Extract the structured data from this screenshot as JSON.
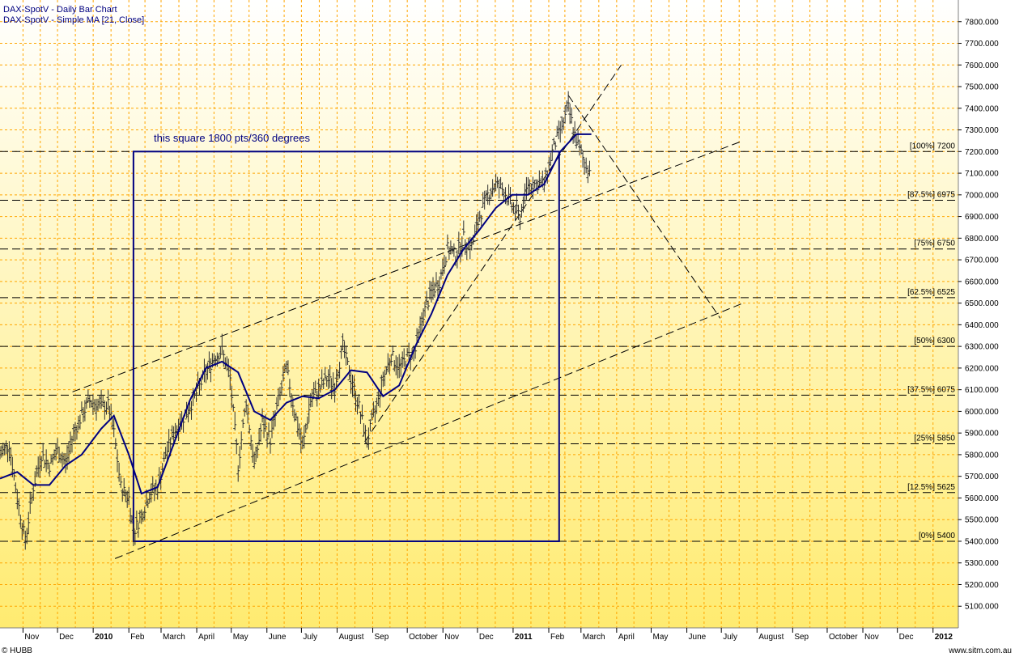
{
  "chart_data": {
    "type": "bar",
    "title": "DAX-SpotV - Daily Bar Chart",
    "subtitle": "DAX-SpotV - Simple MA [21, Close]",
    "annotation": "this square 1800 pts/360 degrees",
    "footer_left": "© HUBB",
    "footer_right": "www.sitm.com.au",
    "colors": {
      "bars": "#303030",
      "ma": "#000080",
      "square": "#000080",
      "grid": "#ffa500",
      "bg_top": "#ffffff",
      "bg_bottom": "#ffeb70"
    },
    "ylim": [
      5000,
      7900
    ],
    "y_ticks": [
      {
        "v": 5100,
        "label": "5100.000"
      },
      {
        "v": 5200,
        "label": "5200.000"
      },
      {
        "v": 5300,
        "label": "5300.000"
      },
      {
        "v": 5400,
        "label": "5400.000"
      },
      {
        "v": 5500,
        "label": "5500.000"
      },
      {
        "v": 5600,
        "label": "5600.000"
      },
      {
        "v": 5700,
        "label": "5700.000"
      },
      {
        "v": 5800,
        "label": "5800.000"
      },
      {
        "v": 5900,
        "label": "5900.000"
      },
      {
        "v": 6000,
        "label": "6000.000"
      },
      {
        "v": 6100,
        "label": "6100.000"
      },
      {
        "v": 6200,
        "label": "6200.000"
      },
      {
        "v": 6300,
        "label": "6300.000"
      },
      {
        "v": 6400,
        "label": "6400.000"
      },
      {
        "v": 6500,
        "label": "6500.000"
      },
      {
        "v": 6600,
        "label": "6600.000"
      },
      {
        "v": 6700,
        "label": "6700.000"
      },
      {
        "v": 6800,
        "label": "6800.000"
      },
      {
        "v": 6900,
        "label": "6900.000"
      },
      {
        "v": 7000,
        "label": "7000.000"
      },
      {
        "v": 7100,
        "label": "7100.000"
      },
      {
        "v": 7200,
        "label": "7200.000"
      },
      {
        "v": 7300,
        "label": "7300.000"
      },
      {
        "v": 7400,
        "label": "7400.000"
      },
      {
        "v": 7500,
        "label": "7500.000"
      },
      {
        "v": 7600,
        "label": "7600.000"
      },
      {
        "v": 7700,
        "label": "7700.000"
      },
      {
        "v": 7800,
        "label": "7800.000"
      }
    ],
    "x_range": [
      "2009-10-12",
      "2012-01-23"
    ],
    "x_labels": [
      {
        "date": "2009-11-01",
        "label": "Nov",
        "bold": false
      },
      {
        "date": "2009-12-01",
        "label": "Dec",
        "bold": false
      },
      {
        "date": "2010-01-01",
        "label": "2010",
        "bold": true
      },
      {
        "date": "2010-02-01",
        "label": "Feb",
        "bold": false
      },
      {
        "date": "2010-03-01",
        "label": "March",
        "bold": false
      },
      {
        "date": "2010-04-01",
        "label": "April",
        "bold": false
      },
      {
        "date": "2010-05-01",
        "label": "May",
        "bold": false
      },
      {
        "date": "2010-06-01",
        "label": "June",
        "bold": false
      },
      {
        "date": "2010-07-01",
        "label": "July",
        "bold": false
      },
      {
        "date": "2010-08-01",
        "label": "August",
        "bold": false
      },
      {
        "date": "2010-09-01",
        "label": "Sep",
        "bold": false
      },
      {
        "date": "2010-10-01",
        "label": "October",
        "bold": false
      },
      {
        "date": "2010-11-01",
        "label": "Nov",
        "bold": false
      },
      {
        "date": "2010-12-01",
        "label": "Dec",
        "bold": false
      },
      {
        "date": "2011-01-01",
        "label": "2011",
        "bold": true
      },
      {
        "date": "2011-02-01",
        "label": "Feb",
        "bold": false
      },
      {
        "date": "2011-03-01",
        "label": "March",
        "bold": false
      },
      {
        "date": "2011-04-01",
        "label": "April",
        "bold": false
      },
      {
        "date": "2011-05-01",
        "label": "May",
        "bold": false
      },
      {
        "date": "2011-06-01",
        "label": "June",
        "bold": false
      },
      {
        "date": "2011-07-01",
        "label": "July",
        "bold": false
      },
      {
        "date": "2011-08-01",
        "label": "August",
        "bold": false
      },
      {
        "date": "2011-09-01",
        "label": "Sep",
        "bold": false
      },
      {
        "date": "2011-10-01",
        "label": "October",
        "bold": false
      },
      {
        "date": "2011-11-01",
        "label": "Nov",
        "bold": false
      },
      {
        "date": "2011-12-01",
        "label": "Dec",
        "bold": false
      },
      {
        "date": "2012-01-01",
        "label": "2012",
        "bold": true
      }
    ],
    "series": [
      {
        "name": "DAX-SpotV",
        "type": "bar",
        "points": [
          [
            "2009-10-12",
            5800
          ],
          [
            "2009-10-20",
            5850
          ],
          [
            "2009-10-27",
            5600
          ],
          [
            "2009-11-03",
            5400
          ],
          [
            "2009-11-10",
            5650
          ],
          [
            "2009-11-17",
            5800
          ],
          [
            "2009-11-24",
            5750
          ],
          [
            "2009-12-01",
            5820
          ],
          [
            "2009-12-08",
            5760
          ],
          [
            "2009-12-15",
            5900
          ],
          [
            "2009-12-22",
            5980
          ],
          [
            "2009-12-29",
            6050
          ],
          [
            "2010-01-08",
            6020
          ],
          [
            "2010-01-14",
            6030
          ],
          [
            "2010-01-19",
            5900
          ],
          [
            "2010-01-25",
            5650
          ],
          [
            "2010-02-01",
            5600
          ],
          [
            "2010-02-05",
            5440
          ],
          [
            "2010-02-12",
            5520
          ],
          [
            "2010-02-19",
            5620
          ],
          [
            "2010-02-26",
            5650
          ],
          [
            "2010-03-05",
            5800
          ],
          [
            "2010-03-12",
            5900
          ],
          [
            "2010-03-19",
            5960
          ],
          [
            "2010-03-26",
            6020
          ],
          [
            "2010-04-02",
            6100
          ],
          [
            "2010-04-09",
            6180
          ],
          [
            "2010-04-16",
            6250
          ],
          [
            "2010-04-23",
            6280
          ],
          [
            "2010-04-30",
            6150
          ],
          [
            "2010-05-07",
            5750
          ],
          [
            "2010-05-14",
            6050
          ],
          [
            "2010-05-21",
            5750
          ],
          [
            "2010-05-28",
            5950
          ],
          [
            "2010-06-04",
            5870
          ],
          [
            "2010-06-11",
            6050
          ],
          [
            "2010-06-18",
            6200
          ],
          [
            "2010-06-25",
            6000
          ],
          [
            "2010-07-02",
            5830
          ],
          [
            "2010-07-09",
            6050
          ],
          [
            "2010-07-16",
            6100
          ],
          [
            "2010-07-23",
            6150
          ],
          [
            "2010-07-30",
            6120
          ],
          [
            "2010-08-06",
            6300
          ],
          [
            "2010-08-13",
            6150
          ],
          [
            "2010-08-20",
            6020
          ],
          [
            "2010-08-27",
            5860
          ],
          [
            "2010-09-03",
            6000
          ],
          [
            "2010-09-10",
            6150
          ],
          [
            "2010-09-17",
            6260
          ],
          [
            "2010-09-24",
            6200
          ],
          [
            "2010-10-01",
            6250
          ],
          [
            "2010-10-08",
            6280
          ],
          [
            "2010-10-15",
            6450
          ],
          [
            "2010-10-22",
            6550
          ],
          [
            "2010-10-29",
            6600
          ],
          [
            "2010-11-05",
            6750
          ],
          [
            "2010-11-12",
            6720
          ],
          [
            "2010-11-19",
            6800
          ],
          [
            "2010-11-26",
            6760
          ],
          [
            "2010-12-03",
            6900
          ],
          [
            "2010-12-10",
            7000
          ],
          [
            "2010-12-17",
            7050
          ],
          [
            "2010-12-24",
            7020
          ],
          [
            "2010-12-31",
            6950
          ],
          [
            "2011-01-07",
            6900
          ],
          [
            "2011-01-14",
            7050
          ],
          [
            "2011-01-21",
            7050
          ],
          [
            "2011-01-28",
            7050
          ],
          [
            "2011-02-04",
            7200
          ],
          [
            "2011-02-11",
            7300
          ],
          [
            "2011-02-18",
            7400
          ],
          [
            "2011-02-25",
            7250
          ],
          [
            "2011-03-04",
            7150
          ],
          [
            "2011-03-10",
            7100
          ]
        ]
      },
      {
        "name": "Simple MA [21, Close]",
        "type": "line",
        "points": [
          [
            "2009-10-12",
            5690
          ],
          [
            "2009-10-27",
            5720
          ],
          [
            "2009-11-10",
            5660
          ],
          [
            "2009-11-24",
            5660
          ],
          [
            "2009-12-08",
            5750
          ],
          [
            "2009-12-22",
            5800
          ],
          [
            "2010-01-08",
            5920
          ],
          [
            "2010-01-19",
            5980
          ],
          [
            "2010-02-01",
            5800
          ],
          [
            "2010-02-12",
            5620
          ],
          [
            "2010-02-26",
            5650
          ],
          [
            "2010-03-12",
            5850
          ],
          [
            "2010-03-26",
            6050
          ],
          [
            "2010-04-09",
            6200
          ],
          [
            "2010-04-23",
            6230
          ],
          [
            "2010-05-07",
            6180
          ],
          [
            "2010-05-21",
            6000
          ],
          [
            "2010-06-04",
            5960
          ],
          [
            "2010-06-18",
            6040
          ],
          [
            "2010-07-02",
            6070
          ],
          [
            "2010-07-16",
            6060
          ],
          [
            "2010-07-30",
            6100
          ],
          [
            "2010-08-13",
            6190
          ],
          [
            "2010-08-27",
            6180
          ],
          [
            "2010-09-10",
            6070
          ],
          [
            "2010-09-24",
            6120
          ],
          [
            "2010-10-08",
            6300
          ],
          [
            "2010-10-22",
            6450
          ],
          [
            "2010-11-05",
            6630
          ],
          [
            "2010-11-19",
            6750
          ],
          [
            "2010-12-03",
            6840
          ],
          [
            "2010-12-17",
            6940
          ],
          [
            "2010-12-31",
            7000
          ],
          [
            "2011-01-14",
            7000
          ],
          [
            "2011-01-28",
            7050
          ],
          [
            "2011-02-11",
            7200
          ],
          [
            "2011-02-25",
            7280
          ],
          [
            "2011-03-10",
            7280
          ]
        ]
      }
    ],
    "square": {
      "x0": "2010-02-05",
      "x1": "2011-02-10",
      "y0": 5400,
      "y1": 7200
    },
    "levels": [
      {
        "y": 7200,
        "label": "[100%] 7200"
      },
      {
        "y": 6975,
        "label": "[87.5%] 6975"
      },
      {
        "y": 6750,
        "label": "[75%] 6750"
      },
      {
        "y": 6525,
        "label": "[62.5%] 6525"
      },
      {
        "y": 6300,
        "label": "[50%] 6300"
      },
      {
        "y": 6075,
        "label": "[37.5%] 6075"
      },
      {
        "y": 5850,
        "label": "[25%] 5850"
      },
      {
        "y": 5625,
        "label": "[12.5%] 5625"
      },
      {
        "y": 5400,
        "label": "[0%] 5400"
      }
    ],
    "trendlines": [
      {
        "x1": "2010-01-20",
        "y1": 5320,
        "x2": "2011-07-20",
        "y2": 6500
      },
      {
        "x1": "2009-12-14",
        "y1": 6090,
        "x2": "2011-07-20",
        "y2": 7250
      },
      {
        "x1": "2010-08-25",
        "y1": 5860,
        "x2": "2011-04-05",
        "y2": 7600
      },
      {
        "x1": "2011-02-18",
        "y1": 7460,
        "x2": "2011-06-30",
        "y2": 6430
      }
    ]
  }
}
